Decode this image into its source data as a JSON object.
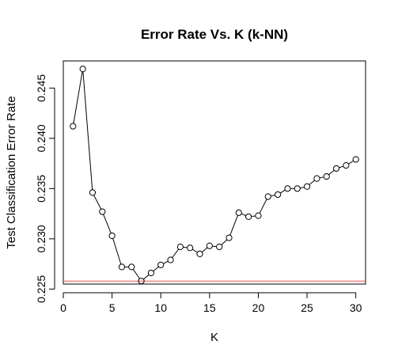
{
  "chart_data": {
    "type": "line",
    "title": "Error Rate Vs. K (k-NN)",
    "xlabel": "K",
    "ylabel": "Test Classification Error Rate",
    "xlim": [
      0,
      31
    ],
    "ylim": [
      0.2255,
      0.2477
    ],
    "x_ticks": [
      0,
      5,
      10,
      15,
      20,
      25,
      30
    ],
    "x_tick_labels": [
      "0",
      "5",
      "10",
      "15",
      "20",
      "25",
      "30"
    ],
    "y_ticks": [
      0.225,
      0.23,
      0.235,
      0.24,
      0.245
    ],
    "y_tick_labels": [
      "0.225",
      "0.230",
      "0.235",
      "0.240",
      "0.245"
    ],
    "grid": false,
    "legend": "none",
    "series": [
      {
        "x": [
          1,
          2,
          3,
          4,
          5,
          6,
          7,
          8,
          9,
          10,
          11,
          12,
          13,
          14,
          15,
          16,
          17,
          18,
          19,
          20,
          21,
          22,
          23,
          24,
          25,
          26,
          27,
          28,
          29,
          30
        ],
        "values": [
          0.2412,
          0.2469,
          0.2346,
          0.2327,
          0.2303,
          0.2272,
          0.2272,
          0.2258,
          0.2266,
          0.2274,
          0.2279,
          0.2292,
          0.2291,
          0.2285,
          0.2293,
          0.2292,
          0.2301,
          0.2326,
          0.2322,
          0.2323,
          0.2342,
          0.2344,
          0.235,
          0.235,
          0.2352,
          0.236,
          0.2362,
          0.237,
          0.2373,
          0.2379
        ],
        "color": "#000000",
        "marker": "open-circle"
      }
    ],
    "reference_line": {
      "y": 0.2258,
      "color": "#e8504a"
    }
  }
}
